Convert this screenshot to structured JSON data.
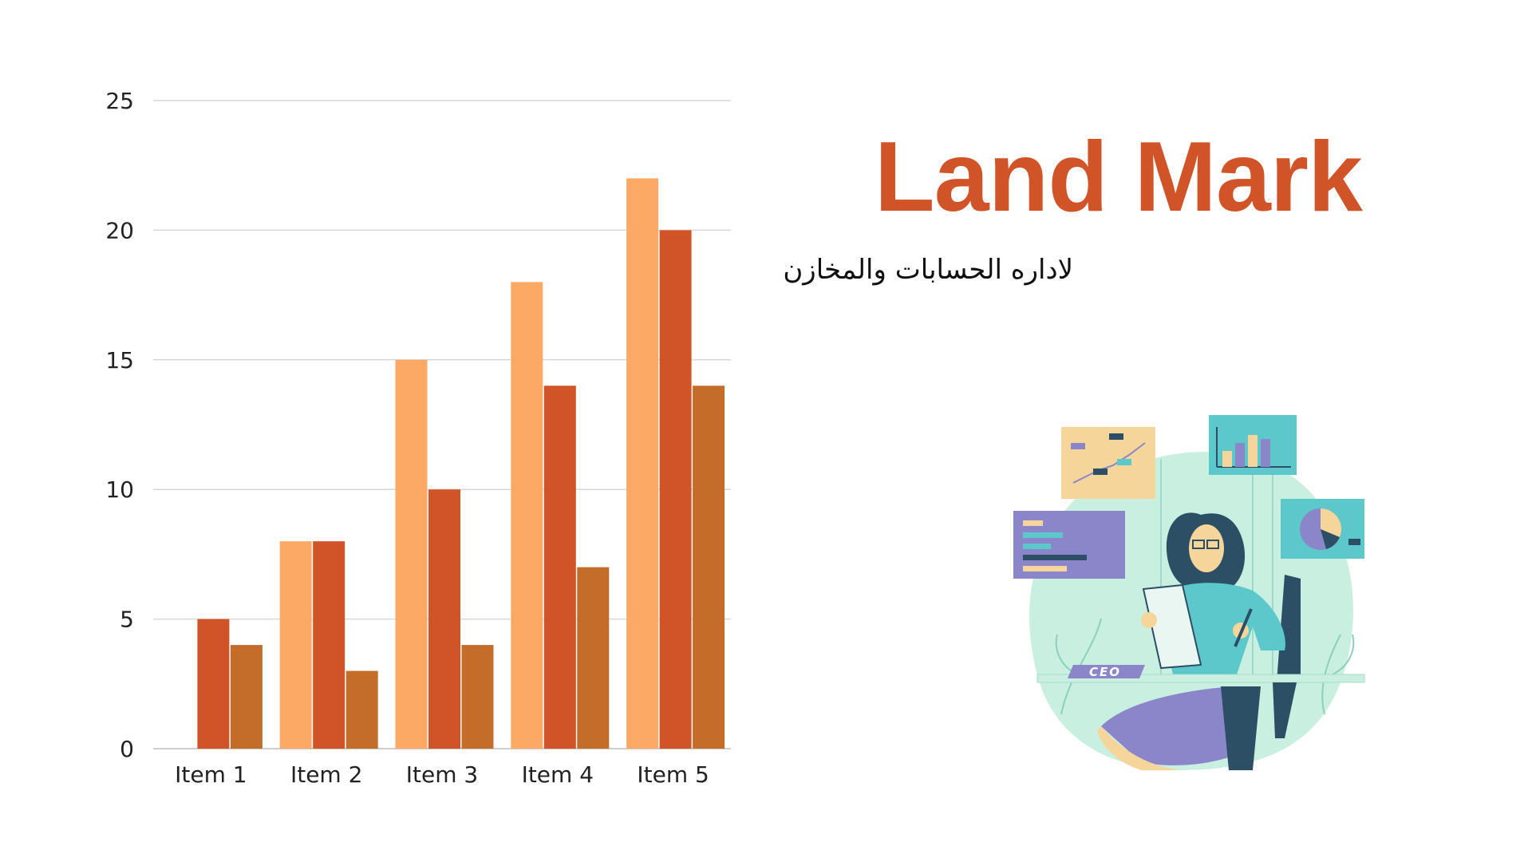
{
  "slide": {
    "title": "Land Mark",
    "subtitle": "لاداره الحسابات والمخازن",
    "illustration": {
      "icon": "woman-ceo-with-dashboards-illustration",
      "desk_sign": "CEO",
      "colors": {
        "mint": "#c8efe0",
        "teal": "#5cc8cc",
        "navy": "#2c4f66",
        "purple": "#8b86c9",
        "peach": "#f6d59b"
      }
    }
  },
  "chart_data": {
    "type": "bar",
    "categories": [
      "Item 1",
      "Item 2",
      "Item 3",
      "Item 4",
      "Item 5"
    ],
    "series": [
      {
        "values": [
          0,
          8,
          15,
          18,
          22
        ],
        "color": "#fba964"
      },
      {
        "values": [
          5,
          8,
          10,
          14,
          20
        ],
        "color": "#d05427"
      },
      {
        "values": [
          4,
          3,
          4,
          7,
          14
        ],
        "color": "#c46d2b"
      }
    ],
    "ylim": [
      0,
      25
    ],
    "yticks": [
      "0",
      "5",
      "10",
      "15",
      "20",
      "25"
    ],
    "grid": true,
    "xlabel": "",
    "ylabel": "",
    "legend": "none"
  }
}
